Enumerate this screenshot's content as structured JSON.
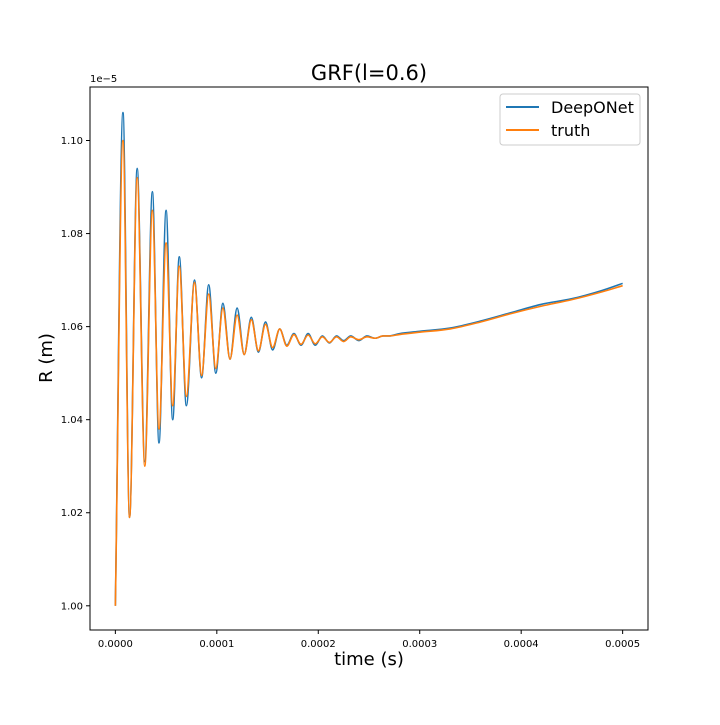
{
  "chart_data": {
    "type": "line",
    "title": "GRF(l=0.6)",
    "xlabel": "time (s)",
    "ylabel": "R (m)",
    "y_offset_label": "1e−5",
    "x_ticks": [
      0.0,
      0.0001,
      0.0002,
      0.0003,
      0.0004,
      0.0005
    ],
    "x_tick_labels": [
      "0.0000",
      "0.0001",
      "0.0002",
      "0.0003",
      "0.0004",
      "0.0005"
    ],
    "y_ticks": [
      1.0,
      1.02,
      1.04,
      1.06,
      1.08,
      1.1
    ],
    "y_tick_labels": [
      "1.00",
      "1.02",
      "1.04",
      "1.06",
      "1.08",
      "1.10"
    ],
    "xlim": [
      -2.5e-05,
      0.000525
    ],
    "ylim": [
      0.9948,
      1.1115
    ],
    "grid": false,
    "legend_position": "upper right",
    "series": [
      {
        "name": "DeepONet",
        "color": "#1f77b4",
        "peaks": [
          [
            0.0,
            1.0
          ],
          [
            7.5e-06,
            1.106
          ],
          [
            1.4e-05,
            1.019
          ],
          [
            2.15e-05,
            1.094
          ],
          [
            2.9e-05,
            1.031
          ],
          [
            3.65e-05,
            1.089
          ],
          [
            4.3e-05,
            1.035
          ],
          [
            5e-05,
            1.085
          ],
          [
            5.65e-05,
            1.04
          ],
          [
            6.3e-05,
            1.075
          ],
          [
            7e-05,
            1.043
          ],
          [
            7.8e-05,
            1.07
          ],
          [
            8.5e-05,
            1.049
          ],
          [
            9.2e-05,
            1.069
          ],
          [
            9.9e-05,
            1.05
          ],
          [
            0.000106,
            1.065
          ],
          [
            0.000113,
            1.053
          ],
          [
            0.00012,
            1.064
          ],
          [
            0.000127,
            1.054
          ],
          [
            0.000134,
            1.062
          ],
          [
            0.000141,
            1.0545
          ],
          [
            0.000148,
            1.061
          ],
          [
            0.000155,
            1.055
          ],
          [
            0.000162,
            1.0595
          ],
          [
            0.000169,
            1.056
          ],
          [
            0.000176,
            1.0585
          ],
          [
            0.000183,
            1.056
          ],
          [
            0.00019,
            1.0585
          ],
          [
            0.000197,
            1.056
          ],
          [
            0.000204,
            1.058
          ],
          [
            0.000211,
            1.0565
          ],
          [
            0.000218,
            1.058
          ],
          [
            0.000225,
            1.057
          ],
          [
            0.000232,
            1.058
          ],
          [
            0.00024,
            1.057
          ],
          [
            0.000248,
            1.058
          ],
          [
            0.000256,
            1.0575
          ],
          [
            0.000264,
            1.058
          ],
          [
            0.00027,
            1.058
          ],
          [
            0.00028,
            1.0585
          ],
          [
            0.0003,
            1.059
          ],
          [
            0.00033,
            1.0597
          ],
          [
            0.00036,
            1.0612
          ],
          [
            0.00039,
            1.063
          ],
          [
            0.00042,
            1.0648
          ],
          [
            0.00045,
            1.066
          ],
          [
            0.00048,
            1.0678
          ],
          [
            0.0005,
            1.0693
          ]
        ]
      },
      {
        "name": "truth",
        "color": "#ff7f0e",
        "peaks": [
          [
            0.0,
            1.0
          ],
          [
            7.5e-06,
            1.1
          ],
          [
            1.4e-05,
            1.019
          ],
          [
            2.15e-05,
            1.092
          ],
          [
            2.9e-05,
            1.03
          ],
          [
            3.65e-05,
            1.085
          ],
          [
            4.3e-05,
            1.038
          ],
          [
            5e-05,
            1.078
          ],
          [
            5.65e-05,
            1.043
          ],
          [
            6.3e-05,
            1.073
          ],
          [
            7e-05,
            1.045
          ],
          [
            7.8e-05,
            1.0695
          ],
          [
            8.5e-05,
            1.0495
          ],
          [
            9.2e-05,
            1.067
          ],
          [
            9.9e-05,
            1.051
          ],
          [
            0.000106,
            1.064
          ],
          [
            0.000113,
            1.053
          ],
          [
            0.00012,
            1.0625
          ],
          [
            0.000127,
            1.054
          ],
          [
            0.000134,
            1.0615
          ],
          [
            0.000141,
            1.0548
          ],
          [
            0.000148,
            1.0605
          ],
          [
            0.000155,
            1.0555
          ],
          [
            0.000162,
            1.0595
          ],
          [
            0.000169,
            1.0558
          ],
          [
            0.000176,
            1.0583
          ],
          [
            0.000183,
            1.0562
          ],
          [
            0.00019,
            1.0582
          ],
          [
            0.000197,
            1.0563
          ],
          [
            0.000204,
            1.0578
          ],
          [
            0.000211,
            1.0566
          ],
          [
            0.000218,
            1.0578
          ],
          [
            0.000225,
            1.0568
          ],
          [
            0.000232,
            1.0578
          ],
          [
            0.00024,
            1.0572
          ],
          [
            0.000248,
            1.0578
          ],
          [
            0.000256,
            1.0575
          ],
          [
            0.000264,
            1.058
          ],
          [
            0.00027,
            1.058
          ],
          [
            0.00028,
            1.0583
          ],
          [
            0.0003,
            1.0588
          ],
          [
            0.00033,
            1.0595
          ],
          [
            0.00036,
            1.061
          ],
          [
            0.00039,
            1.0628
          ],
          [
            0.00042,
            1.0644
          ],
          [
            0.00045,
            1.0658
          ],
          [
            0.00048,
            1.0675
          ],
          [
            0.0005,
            1.0688
          ]
        ]
      }
    ]
  }
}
